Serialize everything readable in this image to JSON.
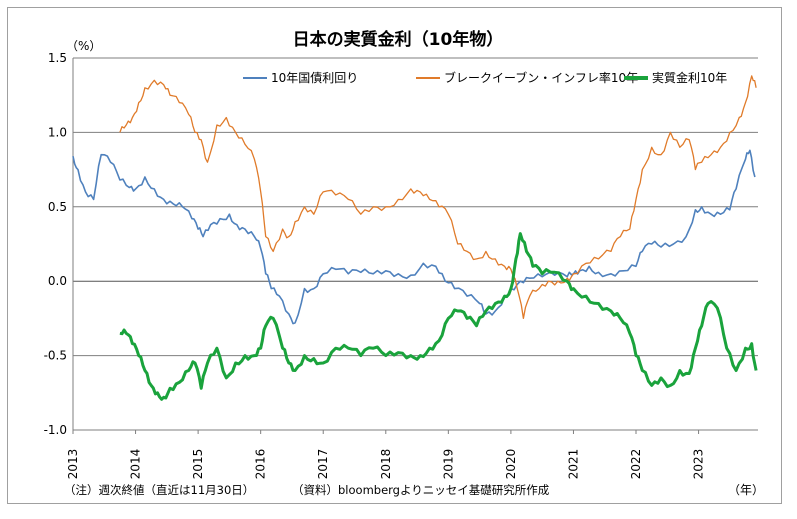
{
  "chart_data": {
    "type": "line",
    "title": "日本の実質金利（10年物）",
    "ylabel": "（%）",
    "xlabel": "（年）",
    "ylim": [
      -1.0,
      1.5
    ],
    "yticks": [
      "1.5",
      "1.0",
      "0.5",
      "0.0",
      "-0.5",
      "-1.0"
    ],
    "ytick_values": [
      1.5,
      1.0,
      0.5,
      0.0,
      -0.5,
      -1.0
    ],
    "xlim": [
      2013.0,
      2023.95
    ],
    "xticks": [
      "2013",
      "2014",
      "2015",
      "2016",
      "2017",
      "2018",
      "2019",
      "2020",
      "2021",
      "2022",
      "2023"
    ],
    "grid": true,
    "legend": "top",
    "footnote_left": "（注）週次終値（直近は11月30日）",
    "footnote_right": "（資料）bloombergよりニッセイ基礎研究所作成",
    "series": [
      {
        "name": "10年国債利回り",
        "color": "#4f81bd",
        "x": [
          2013.0,
          2013.08,
          2013.2,
          2013.33,
          2013.45,
          2013.6,
          2013.75,
          2013.9,
          2014.0,
          2014.15,
          2014.3,
          2014.45,
          2014.6,
          2014.75,
          2014.9,
          2015.0,
          2015.08,
          2015.2,
          2015.35,
          2015.5,
          2015.62,
          2015.75,
          2015.9,
          2016.0,
          2016.08,
          2016.17,
          2016.3,
          2016.45,
          2016.55,
          2016.7,
          2016.85,
          2017.0,
          2017.2,
          2017.4,
          2017.6,
          2017.8,
          2018.0,
          2018.2,
          2018.4,
          2018.6,
          2018.8,
          2018.95,
          2019.1,
          2019.3,
          2019.5,
          2019.6,
          2019.75,
          2019.9,
          2020.0,
          2020.15,
          2020.3,
          2020.5,
          2020.7,
          2020.9,
          2021.0,
          2021.1,
          2021.25,
          2021.4,
          2021.6,
          2021.8,
          2022.0,
          2022.1,
          2022.25,
          2022.4,
          2022.6,
          2022.8,
          2022.95,
          2023.05,
          2023.2,
          2023.35,
          2023.5,
          2023.6,
          2023.75,
          2023.82,
          2023.9
        ],
        "values": [
          0.84,
          0.75,
          0.6,
          0.55,
          0.85,
          0.8,
          0.68,
          0.63,
          0.62,
          0.7,
          0.62,
          0.55,
          0.52,
          0.5,
          0.42,
          0.35,
          0.3,
          0.38,
          0.42,
          0.45,
          0.38,
          0.35,
          0.3,
          0.22,
          0.05,
          -0.05,
          -0.1,
          -0.22,
          -0.28,
          -0.05,
          -0.05,
          0.05,
          0.08,
          0.05,
          0.06,
          0.05,
          0.07,
          0.05,
          0.04,
          0.12,
          0.1,
          0.0,
          -0.05,
          -0.1,
          -0.15,
          -0.22,
          -0.2,
          -0.1,
          -0.05,
          0.0,
          0.02,
          0.03,
          0.04,
          0.03,
          0.05,
          0.07,
          0.1,
          0.06,
          0.05,
          0.07,
          0.1,
          0.2,
          0.25,
          0.23,
          0.25,
          0.3,
          0.48,
          0.5,
          0.45,
          0.45,
          0.48,
          0.62,
          0.82,
          0.88,
          0.7
        ]
      },
      {
        "name": "ブレークイーブン・インフレ率10年",
        "color": "#e07b2a",
        "x": [
          2013.75,
          2013.85,
          2013.95,
          2014.05,
          2014.15,
          2014.3,
          2014.45,
          2014.55,
          2014.7,
          2014.85,
          2014.95,
          2015.05,
          2015.15,
          2015.3,
          2015.45,
          2015.6,
          2015.75,
          2015.9,
          2016.0,
          2016.08,
          2016.2,
          2016.35,
          2016.45,
          2016.55,
          2016.7,
          2016.85,
          2017.0,
          2017.2,
          2017.4,
          2017.6,
          2017.8,
          2018.0,
          2018.2,
          2018.4,
          2018.55,
          2018.7,
          2018.85,
          2019.0,
          2019.15,
          2019.3,
          2019.45,
          2019.6,
          2019.75,
          2019.9,
          2020.0,
          2020.1,
          2020.2,
          2020.3,
          2020.45,
          2020.6,
          2020.75,
          2020.9,
          2021.0,
          2021.2,
          2021.4,
          2021.6,
          2021.75,
          2021.9,
          2022.0,
          2022.1,
          2022.25,
          2022.4,
          2022.55,
          2022.7,
          2022.85,
          2022.95,
          2023.05,
          2023.2,
          2023.35,
          2023.5,
          2023.65,
          2023.75,
          2023.85,
          2023.92
        ],
        "values": [
          1.0,
          1.05,
          1.1,
          1.2,
          1.3,
          1.35,
          1.32,
          1.25,
          1.2,
          1.12,
          1.0,
          0.95,
          0.8,
          1.05,
          1.1,
          1.0,
          0.92,
          0.82,
          0.6,
          0.3,
          0.2,
          0.35,
          0.3,
          0.4,
          0.5,
          0.45,
          0.6,
          0.58,
          0.55,
          0.45,
          0.5,
          0.5,
          0.55,
          0.62,
          0.6,
          0.55,
          0.5,
          0.45,
          0.25,
          0.2,
          0.15,
          0.2,
          0.15,
          0.1,
          0.08,
          -0.05,
          -0.25,
          -0.1,
          -0.05,
          0.0,
          0.0,
          0.02,
          0.05,
          0.12,
          0.15,
          0.2,
          0.3,
          0.35,
          0.55,
          0.75,
          0.9,
          0.85,
          1.0,
          0.9,
          0.95,
          0.75,
          0.8,
          0.85,
          0.9,
          1.0,
          1.1,
          1.2,
          1.38,
          1.3
        ]
      },
      {
        "name": "実質金利10年",
        "color": "#1aa33c",
        "x": [
          2013.75,
          2013.85,
          2013.95,
          2014.05,
          2014.15,
          2014.25,
          2014.35,
          2014.45,
          2014.55,
          2014.7,
          2014.85,
          2014.95,
          2015.05,
          2015.15,
          2015.3,
          2015.45,
          2015.6,
          2015.75,
          2015.9,
          2016.0,
          2016.08,
          2016.2,
          2016.35,
          2016.45,
          2016.55,
          2016.7,
          2016.85,
          2017.0,
          2017.2,
          2017.4,
          2017.6,
          2017.8,
          2018.0,
          2018.2,
          2018.4,
          2018.55,
          2018.7,
          2018.85,
          2019.0,
          2019.15,
          2019.3,
          2019.45,
          2019.6,
          2019.75,
          2019.9,
          2020.0,
          2020.08,
          2020.15,
          2020.25,
          2020.35,
          2020.5,
          2020.7,
          2020.9,
          2021.0,
          2021.2,
          2021.4,
          2021.6,
          2021.75,
          2021.9,
          2022.0,
          2022.1,
          2022.25,
          2022.4,
          2022.55,
          2022.7,
          2022.85,
          2022.95,
          2023.05,
          2023.15,
          2023.3,
          2023.45,
          2023.6,
          2023.75,
          2023.85,
          2023.92
        ],
        "values": [
          -0.35,
          -0.35,
          -0.42,
          -0.5,
          -0.6,
          -0.7,
          -0.75,
          -0.78,
          -0.72,
          -0.68,
          -0.6,
          -0.55,
          -0.72,
          -0.55,
          -0.45,
          -0.65,
          -0.55,
          -0.5,
          -0.5,
          -0.45,
          -0.3,
          -0.25,
          -0.45,
          -0.55,
          -0.6,
          -0.5,
          -0.52,
          -0.55,
          -0.45,
          -0.45,
          -0.5,
          -0.45,
          -0.5,
          -0.48,
          -0.5,
          -0.5,
          -0.45,
          -0.4,
          -0.25,
          -0.2,
          -0.25,
          -0.3,
          -0.2,
          -0.15,
          -0.1,
          -0.05,
          0.15,
          0.32,
          0.2,
          0.1,
          0.05,
          0.06,
          0.0,
          -0.05,
          -0.1,
          -0.15,
          -0.2,
          -0.25,
          -0.35,
          -0.5,
          -0.6,
          -0.7,
          -0.65,
          -0.7,
          -0.6,
          -0.62,
          -0.45,
          -0.3,
          -0.15,
          -0.18,
          -0.45,
          -0.6,
          -0.45,
          -0.42,
          -0.6
        ]
      }
    ]
  }
}
